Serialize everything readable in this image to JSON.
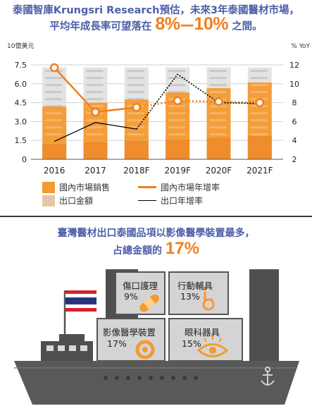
{
  "header": {
    "line1": "泰國智庫Krungsri Research預估，未來3年泰國醫材市場，",
    "line2_prefix": "平均年成長率可望落在",
    "low": "8%",
    "dash": "—",
    "high": "10%",
    "line2_suffix": "之間。"
  },
  "chart_data": {
    "type": "bar",
    "categories": [
      "2016",
      "2017",
      "2018F",
      "2019F",
      "2020F",
      "2021F"
    ],
    "left_axis_label": "10億美元",
    "right_axis_label": "% YoY",
    "left_ticks": [
      "0",
      "1.5",
      "3.0",
      "4.5",
      "6.0",
      "7.5"
    ],
    "right_ticks": [
      "2",
      "4",
      "6",
      "8",
      "10",
      "12"
    ],
    "ylim": [
      0,
      7.5
    ],
    "ylim_right": [
      2,
      12
    ],
    "series": [
      {
        "name": "國內市場銷售",
        "kind": "bar",
        "axis": "left",
        "values": [
          4.2,
          4.5,
          4.75,
          5.3,
          5.65,
          6.1
        ],
        "color": "#f49a30"
      },
      {
        "name": "出口金額",
        "kind": "bar",
        "axis": "left",
        "values": [
          1.2,
          1.35,
          1.45,
          1.55,
          1.7,
          1.85
        ],
        "color": "#e5c7a8"
      },
      {
        "name": "國內市場年增率",
        "kind": "line",
        "axis": "right",
        "values": [
          11.7,
          7.0,
          7.5,
          8.2,
          8.1,
          8.0
        ],
        "color": "#f07f1e"
      },
      {
        "name": "出口年增率",
        "kind": "line",
        "axis": "right",
        "values": [
          3.9,
          5.9,
          5.2,
          11.0,
          8.0,
          7.9
        ],
        "color": "#000000"
      }
    ]
  },
  "subheader": {
    "line1": "臺灣醫材出口泰國品項以影像醫學裝置最多，",
    "line2_prefix": "占總金額的",
    "pct": "17%"
  },
  "boxes": [
    {
      "label": "傷口護理",
      "pct": "9%",
      "icon": "bandage-icon"
    },
    {
      "label": "行動輔具",
      "pct": "13%",
      "icon": "wheelchair-icon"
    },
    {
      "label": "影像醫學裝置",
      "pct": "17%",
      "icon": "scanner-icon"
    },
    {
      "label": "眼科器具",
      "pct": "15%",
      "icon": "eye-icon"
    }
  ],
  "colors": {
    "accent": "#f07f1e",
    "title": "#4d5fa8",
    "ship": "#555555",
    "box": "#d4d4d4"
  }
}
